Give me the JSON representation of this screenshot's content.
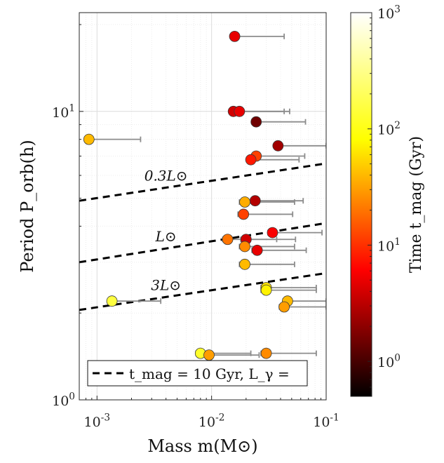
{
  "chart_data": {
    "type": "scatter",
    "xlabel": "Mass m(M⊙)",
    "ylabel": "Period P_orb(h)",
    "xscale": "log",
    "yscale": "log",
    "xlim": [
      0.0007,
      0.1
    ],
    "ylim": [
      1,
      22
    ],
    "grid": true,
    "x_ticks": [
      0.001,
      0.01,
      0.1
    ],
    "x_tick_labels": [
      "10^-3",
      "10^-2",
      "10^-1"
    ],
    "y_ticks": [
      1,
      10
    ],
    "y_tick_labels": [
      "10^0",
      "10^1"
    ],
    "colorbar": {
      "label": "Time t_mag (Gyr)",
      "scale": "log",
      "range": [
        0.5,
        1000
      ],
      "ticks": [
        1,
        10,
        100,
        1000
      ],
      "tick_labels": [
        "10^0",
        "10^1",
        "10^2",
        "10^3"
      ],
      "colormap": "hot"
    },
    "lines": [
      {
        "label": "0.3L⊙",
        "x": [
          0.0007,
          0.1
        ],
        "y": [
          4.9,
          6.6
        ],
        "style": "dashed"
      },
      {
        "label": "L⊙",
        "x": [
          0.0007,
          0.1
        ],
        "y": [
          3.0,
          4.1
        ],
        "style": "dashed"
      },
      {
        "label": "3L⊙",
        "x": [
          0.0007,
          0.1
        ],
        "y": [
          2.05,
          2.75
        ],
        "style": "dashed"
      }
    ],
    "legend": {
      "text": "t_mag = 10 Gyr, L_γ =",
      "placement": "bottom"
    },
    "points": [
      {
        "x": 0.0159,
        "y": 18.2,
        "xerr_lo": 0.0152,
        "xerr_hi": 0.043,
        "t": 5
      },
      {
        "x": 0.0155,
        "y": 10.0,
        "xerr_lo": 0.0143,
        "xerr_hi": 0.043,
        "t": 4
      },
      {
        "x": 0.0175,
        "y": 10.0,
        "xerr_lo": 0.0155,
        "xerr_hi": 0.048,
        "t": 5
      },
      {
        "x": 0.0245,
        "y": 9.2,
        "xerr_lo": 0.0225,
        "xerr_hi": 0.066,
        "t": 1.5
      },
      {
        "x": 0.00085,
        "y": 8.0,
        "xerr_lo": 0.00078,
        "xerr_hi": 0.0024,
        "t": 40
      },
      {
        "x": 0.038,
        "y": 7.6,
        "xerr_lo": 0.035,
        "xerr_hi": 0.1,
        "t": 2.5
      },
      {
        "x": 0.0245,
        "y": 7.0,
        "xerr_lo": 0.0225,
        "xerr_hi": 0.065,
        "t": 12
      },
      {
        "x": 0.022,
        "y": 6.8,
        "xerr_lo": 0.0205,
        "xerr_hi": 0.058,
        "t": 8
      },
      {
        "x": 0.024,
        "y": 4.9,
        "xerr_lo": 0.022,
        "xerr_hi": 0.063,
        "t": 3
      },
      {
        "x": 0.0195,
        "y": 4.85,
        "xerr_lo": 0.0175,
        "xerr_hi": 0.053,
        "t": 35
      },
      {
        "x": 0.019,
        "y": 4.4,
        "xerr_lo": 0.017,
        "xerr_hi": 0.051,
        "t": 12
      },
      {
        "x": 0.034,
        "y": 3.8,
        "xerr_lo": 0.031,
        "xerr_hi": 0.092,
        "t": 6
      },
      {
        "x": 0.0138,
        "y": 3.6,
        "xerr_lo": 0.0125,
        "xerr_hi": 0.037,
        "t": 20
      },
      {
        "x": 0.02,
        "y": 3.6,
        "xerr_lo": 0.018,
        "xerr_hi": 0.054,
        "t": 4
      },
      {
        "x": 0.0195,
        "y": 3.4,
        "xerr_lo": 0.0175,
        "xerr_hi": 0.053,
        "t": 25
      },
      {
        "x": 0.025,
        "y": 3.3,
        "xerr_lo": 0.0225,
        "xerr_hi": 0.067,
        "t": 5
      },
      {
        "x": 0.0195,
        "y": 2.95,
        "xerr_lo": 0.0175,
        "xerr_hi": 0.053,
        "t": 40
      },
      {
        "x": 0.00135,
        "y": 2.2,
        "xerr_lo": 0.00125,
        "xerr_hi": 0.0036,
        "t": 150
      },
      {
        "x": 0.03,
        "y": 2.45,
        "xerr_lo": 0.027,
        "xerr_hi": 0.082,
        "t": 60
      },
      {
        "x": 0.03,
        "y": 2.4,
        "xerr_lo": 0.027,
        "xerr_hi": 0.082,
        "t": 70
      },
      {
        "x": 0.046,
        "y": 2.2,
        "xerr_lo": 0.042,
        "xerr_hi": 0.1,
        "t": 40
      },
      {
        "x": 0.043,
        "y": 2.1,
        "xerr_lo": 0.039,
        "xerr_hi": 0.1,
        "t": 30
      },
      {
        "x": 0.008,
        "y": 1.45,
        "xerr_lo": 0.0073,
        "xerr_hi": 0.022,
        "t": 120
      },
      {
        "x": 0.0095,
        "y": 1.43,
        "xerr_lo": 0.0088,
        "xerr_hi": 0.026,
        "t": 30
      },
      {
        "x": 0.03,
        "y": 1.45,
        "xerr_lo": 0.027,
        "xerr_hi": 0.082,
        "t": 25
      }
    ]
  }
}
